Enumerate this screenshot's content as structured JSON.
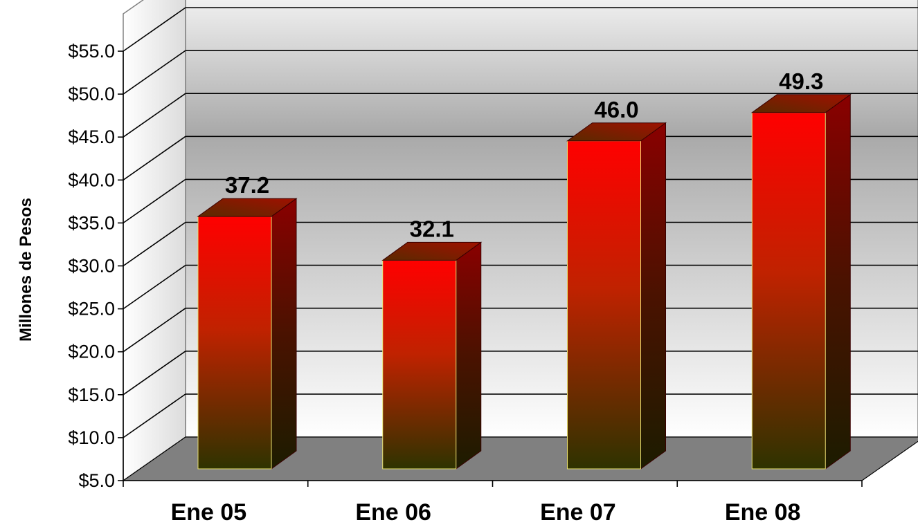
{
  "chart_data": {
    "type": "bar",
    "title": "",
    "xlabel": "",
    "ylabel": "Millones de Pesos",
    "categories": [
      "Ene 05",
      "Ene 06",
      "Ene 07",
      "Ene 08"
    ],
    "values": [
      37.2,
      32.1,
      46.0,
      49.3
    ],
    "data_labels": [
      "37.2",
      "32.1",
      "46.0",
      "49.3"
    ],
    "ylim": [
      5,
      55
    ],
    "yticks": [
      5,
      10,
      15,
      20,
      25,
      30,
      35,
      40,
      45,
      50,
      55
    ],
    "ytick_labels": [
      "$5.0",
      "$10.0",
      "$15.0",
      "$20.0",
      "$25.0",
      "$30.0",
      "$35.0",
      "$40.0",
      "$45.0",
      "$50.0",
      "$55.0"
    ],
    "grid": true,
    "style": "3d-column",
    "colors": {
      "bar_top": "#ff0000",
      "bar_bottom": "#2e3300",
      "bar_side_top": "#8a0000",
      "bar_side_bottom": "#1c1c00",
      "bar_cap": "#7a1a00",
      "floor": "#808080",
      "wall_top": "#aaaaaa",
      "wall_bottom": "#ffffff"
    }
  }
}
